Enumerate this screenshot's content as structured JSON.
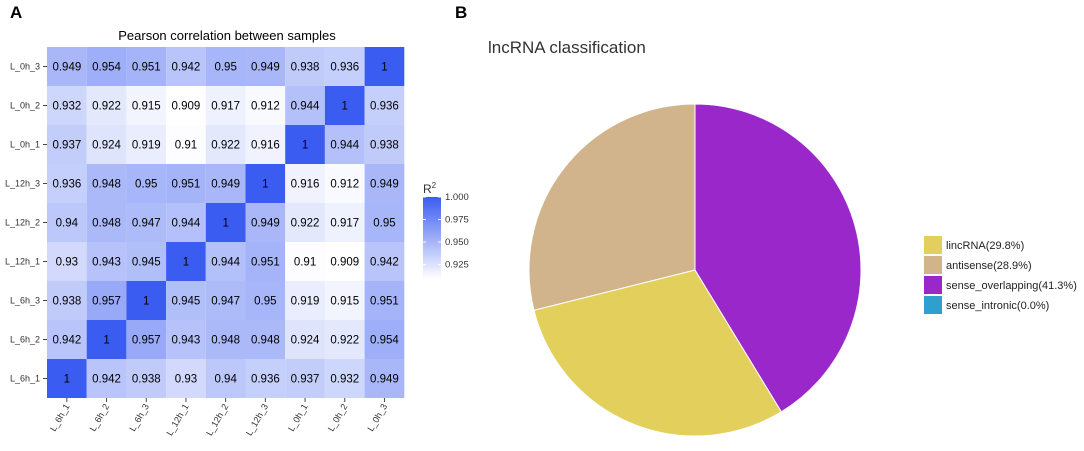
{
  "panels": {
    "a": {
      "letter": "A"
    },
    "b": {
      "letter": "B"
    }
  },
  "chart_data": [
    {
      "type": "heatmap",
      "title": "Pearson correlation between samples",
      "x_labels": [
        "L_6h_1",
        "L_6h_2",
        "L_6h_3",
        "L_12h_1",
        "L_12h_2",
        "L_12h_3",
        "L_0h_1",
        "L_0h_2",
        "L_0h_3"
      ],
      "y_labels_top_to_bottom": [
        "L_0h_3",
        "L_0h_2",
        "L_0h_1",
        "L_12h_3",
        "L_12h_2",
        "L_12h_1",
        "L_6h_3",
        "L_6h_2",
        "L_6h_1"
      ],
      "values": [
        [
          "0.949",
          "0.954",
          "0.951",
          "0.942",
          "0.95",
          "0.949",
          "0.938",
          "0.936",
          "1"
        ],
        [
          "0.932",
          "0.922",
          "0.915",
          "0.909",
          "0.917",
          "0.912",
          "0.944",
          "1",
          "0.936"
        ],
        [
          "0.937",
          "0.924",
          "0.919",
          "0.91",
          "0.922",
          "0.916",
          "1",
          "0.944",
          "0.938"
        ],
        [
          "0.936",
          "0.948",
          "0.95",
          "0.951",
          "0.949",
          "1",
          "0.916",
          "0.912",
          "0.949"
        ],
        [
          "0.94",
          "0.948",
          "0.947",
          "0.944",
          "1",
          "0.949",
          "0.922",
          "0.917",
          "0.95"
        ],
        [
          "0.93",
          "0.943",
          "0.945",
          "1",
          "0.944",
          "0.951",
          "0.91",
          "0.909",
          "0.942"
        ],
        [
          "0.938",
          "0.957",
          "1",
          "0.945",
          "0.947",
          "0.95",
          "0.919",
          "0.915",
          "0.951"
        ],
        [
          "0.942",
          "1",
          "0.957",
          "0.943",
          "0.948",
          "0.948",
          "0.924",
          "0.922",
          "0.954"
        ],
        [
          "1",
          "0.942",
          "0.938",
          "0.93",
          "0.94",
          "0.936",
          "0.937",
          "0.932",
          "0.949"
        ]
      ],
      "color_scale": {
        "low": "#ffffff",
        "high": "#3b5cf0",
        "min": 0.909,
        "max": 1.0
      },
      "legend": {
        "title_base": "R",
        "title_sup": "2",
        "ticks": [
          "1.000",
          "0.975",
          "0.950",
          "0.925"
        ],
        "tick_values": [
          1.0,
          0.975,
          0.95,
          0.925
        ],
        "placement": "right"
      }
    },
    {
      "type": "pie",
      "title": "lncRNA classification",
      "slices": [
        {
          "label": "lincRNA(29.8%)",
          "name": "lincRNA",
          "value": 29.8,
          "color": "#e2cf5c"
        },
        {
          "label": "antisense(28.9%)",
          "name": "antisense",
          "value": 28.9,
          "color": "#d2b48c"
        },
        {
          "label": "sense_overlapping(41.3%)",
          "name": "sense_overlapping",
          "value": 41.3,
          "color": "#9a27c9"
        },
        {
          "label": "sense_intronic(0.0%)",
          "name": "sense_intronic",
          "value": 0.0,
          "color": "#2f9fd0"
        }
      ],
      "drawing_order": [
        "sense_overlapping",
        "lincRNA",
        "antisense",
        "sense_intronic"
      ],
      "legend_placement": "right"
    }
  ]
}
